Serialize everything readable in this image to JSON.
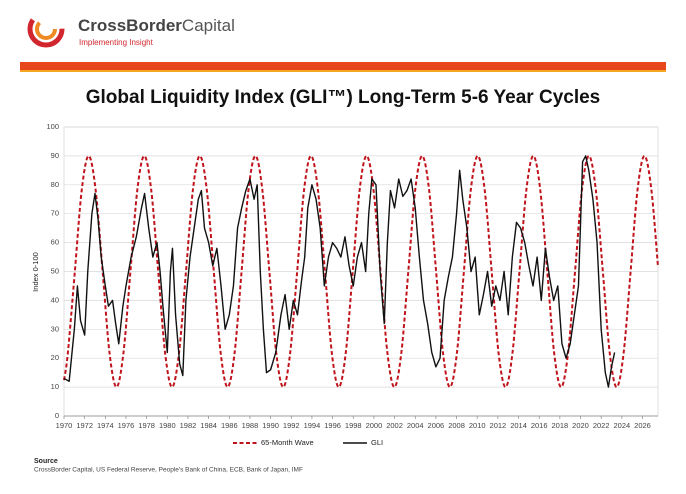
{
  "header": {
    "brand_bold": "CrossBorder",
    "brand_light": "Capital",
    "tagline": "Implementing Insight"
  },
  "footer": {
    "source_title": "Source",
    "source_text": "CrossBorder Capital, US Federal Reserve, People's Bank of China, ECB, Bank of Japan, IMF"
  },
  "chart_data": {
    "type": "line",
    "title": "Global Liquidity Index (GLI™) Long-Term 5-6 Year Cycles",
    "y_label": "Index 0-100",
    "xlim": [
      1970,
      2027.5
    ],
    "xticks": [
      1970,
      1972,
      1974,
      1976,
      1978,
      1980,
      1982,
      1984,
      1986,
      1988,
      1990,
      1992,
      1994,
      1996,
      1998,
      2000,
      2002,
      2004,
      2006,
      2008,
      2010,
      2012,
      2014,
      2016,
      2018,
      2020,
      2022,
      2024,
      2026
    ],
    "ylim": [
      0,
      100
    ],
    "yticks": [
      0,
      10,
      20,
      30,
      40,
      50,
      60,
      70,
      80,
      90,
      100
    ],
    "grid": true,
    "legend": "bottom",
    "series": [
      {
        "name": "65-Month Wave",
        "color": "#c0141c",
        "dashed": true,
        "smooth": true,
        "x": [
          1970,
          1970.37,
          1971.05,
          1971.72,
          1972.39,
          1973.06,
          1973.74,
          1974.41,
          1975.08,
          1975.75,
          1976.43,
          1977.1,
          1977.77,
          1978.44,
          1979.12,
          1979.79,
          1980.46,
          1981.13,
          1981.81,
          1982.48,
          1983.15,
          1983.82,
          1984.5,
          1985.17,
          1985.84,
          1986.51,
          1987.19,
          1987.86,
          1988.53,
          1989.2,
          1989.88,
          1990.55,
          1991.22,
          1991.89,
          1992.57,
          1993.24,
          1993.91,
          1994.58,
          1995.26,
          1995.93,
          1996.6,
          1997.27,
          1997.95,
          1998.62,
          1999.29,
          1999.96,
          2000.64,
          2001.31,
          2001.98,
          2002.65,
          2003.33,
          2004.0,
          2004.67,
          2005.34,
          2006.02,
          2006.69,
          2007.36,
          2008.03,
          2008.71,
          2009.38,
          2010.05,
          2010.72,
          2011.4,
          2012.07,
          2012.74,
          2013.41,
          2014.09,
          2014.76,
          2015.43,
          2016.1,
          2016.78,
          2017.45,
          2018.12,
          2018.79,
          2019.47,
          2020.14,
          2020.81,
          2021.48,
          2022.16,
          2022.83,
          2023.5,
          2024.17,
          2024.85,
          2025.52,
          2026.19,
          2026.86,
          2027.5
        ],
        "values": [
          12.4,
          21.7,
          50,
          78.3,
          90,
          78.3,
          50,
          21.7,
          10,
          21.7,
          50,
          78.3,
          90,
          78.3,
          50,
          21.7,
          10,
          21.7,
          50,
          78.3,
          90,
          78.3,
          50,
          21.7,
          10,
          21.7,
          50,
          78.3,
          90,
          78.3,
          50,
          21.7,
          10,
          21.7,
          50,
          78.3,
          90,
          78.3,
          50,
          21.7,
          10,
          21.7,
          50,
          78.3,
          90,
          78.3,
          50,
          21.7,
          10,
          21.7,
          50,
          78.3,
          90,
          78.3,
          50,
          21.7,
          10,
          21.7,
          50,
          78.3,
          90,
          78.3,
          50,
          21.7,
          10,
          21.7,
          50,
          78.3,
          90,
          78.3,
          50,
          21.7,
          10,
          21.7,
          50,
          78.3,
          90,
          78.3,
          50,
          21.7,
          10,
          21.7,
          50,
          78.3,
          90,
          78.3,
          51.6
        ]
      },
      {
        "name": "GLI",
        "color": "#111111",
        "dashed": false,
        "smooth": false,
        "x": [
          1970,
          1970.5,
          1971,
          1971.3,
          1971.6,
          1972,
          1972.3,
          1972.7,
          1973,
          1973.3,
          1973.6,
          1974,
          1974.3,
          1974.7,
          1975,
          1975.3,
          1975.7,
          1976,
          1976.5,
          1977,
          1977.5,
          1977.8,
          1978.2,
          1978.6,
          1979,
          1979.3,
          1979.6,
          1980,
          1980.3,
          1980.5,
          1980.8,
          1981.2,
          1981.5,
          1981.8,
          1982.2,
          1982.6,
          1983,
          1983.3,
          1983.6,
          1984,
          1984.4,
          1984.8,
          1985.2,
          1985.6,
          1986,
          1986.4,
          1986.8,
          1987.2,
          1987.6,
          1988,
          1988.4,
          1988.7,
          1989,
          1989.3,
          1989.6,
          1990,
          1990.5,
          1991,
          1991.4,
          1991.8,
          1992.2,
          1992.6,
          1993,
          1993.3,
          1993.6,
          1994,
          1994.4,
          1994.8,
          1995.2,
          1995.6,
          1996,
          1996.4,
          1996.8,
          1997.2,
          1997.6,
          1998,
          1998.4,
          1998.8,
          1999.2,
          1999.5,
          1999.8,
          2000.2,
          2000.6,
          2001,
          2001.3,
          2001.6,
          2002,
          2002.4,
          2002.8,
          2003.2,
          2003.6,
          2004,
          2004.4,
          2004.8,
          2005.2,
          2005.6,
          2006,
          2006.4,
          2006.8,
          2007.2,
          2007.6,
          2008,
          2008.3,
          2008.6,
          2009,
          2009.4,
          2009.8,
          2010.2,
          2010.6,
          2011,
          2011.4,
          2011.8,
          2012.2,
          2012.6,
          2013,
          2013.4,
          2013.8,
          2014.2,
          2014.6,
          2015,
          2015.4,
          2015.8,
          2016.2,
          2016.6,
          2017,
          2017.4,
          2017.8,
          2018.2,
          2018.6,
          2019,
          2019.4,
          2019.8,
          2020.2,
          2020.5,
          2020.8,
          2021.2,
          2021.6,
          2022,
          2022.4,
          2022.7,
          2023,
          2023.3
        ],
        "values": [
          13,
          12,
          30,
          45,
          33,
          28,
          50,
          70,
          77,
          68,
          55,
          45,
          38,
          40,
          32,
          25,
          38,
          45,
          55,
          62,
          72,
          77,
          65,
          55,
          60,
          50,
          37,
          22,
          50,
          58,
          35,
          18,
          14,
          40,
          55,
          65,
          75,
          78,
          65,
          60,
          52,
          58,
          45,
          30,
          35,
          45,
          65,
          72,
          78,
          82,
          75,
          80,
          50,
          30,
          15,
          16,
          22,
          35,
          42,
          30,
          40,
          35,
          47,
          55,
          72,
          80,
          75,
          65,
          45,
          55,
          60,
          58,
          55,
          62,
          52,
          45,
          55,
          60,
          50,
          70,
          82,
          80,
          50,
          32,
          60,
          78,
          72,
          82,
          76,
          78,
          82,
          72,
          55,
          40,
          32,
          22,
          17,
          20,
          40,
          48,
          55,
          70,
          85,
          75,
          65,
          50,
          55,
          35,
          42,
          50,
          38,
          45,
          40,
          50,
          35,
          55,
          67,
          65,
          60,
          52,
          45,
          55,
          40,
          58,
          48,
          40,
          45,
          25,
          20,
          25,
          35,
          45,
          88,
          90,
          85,
          75,
          60,
          30,
          15,
          10,
          17,
          22
        ]
      }
    ]
  }
}
